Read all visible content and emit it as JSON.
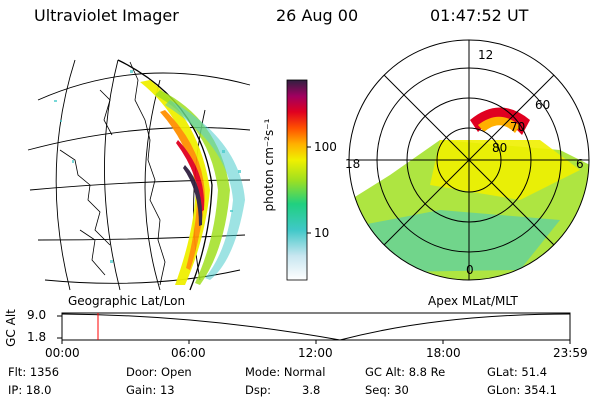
{
  "header": {
    "instrument": "Ultraviolet Imager",
    "date": "26 Aug 00",
    "time": "01:47:52 UT"
  },
  "colorbar": {
    "unit_label": "photon cm⁻²s⁻¹",
    "tick_100": "100",
    "tick_10": "10",
    "colors": [
      "#ffffff",
      "#c8e6f0",
      "#40c8c8",
      "#20d080",
      "#a0e020",
      "#f0f000",
      "#ffb000",
      "#ff5000",
      "#e00020",
      "#a00060",
      "#302040"
    ]
  },
  "polar_plot": {
    "label_top": "12",
    "label_left": "18",
    "label_right": "6",
    "label_bottom": "0",
    "lat_60": "60",
    "lat_70": "70",
    "lat_80": "80"
  },
  "map_labels": {
    "left": "Geographic Lat/Lon",
    "right": "Apex MLat/MLT"
  },
  "altitude_plot": {
    "axis_label": "GC Alt",
    "y_max": "9.0",
    "y_min": "1.8",
    "x_ticks": [
      "00:00",
      "06:00",
      "12:00",
      "18:00",
      "23:59"
    ],
    "current_marker_color": "#ff0000"
  },
  "info": {
    "flt": "Flt: 1356",
    "ip": "IP: 18.0",
    "door": "Door: Open",
    "gain": "Gain: 13",
    "mode": "Mode: Normal",
    "dsp_label": "Dsp:",
    "dsp_value": "3.8",
    "gcalt": "GC Alt: 8.8 Re",
    "seq": "Seq: 30",
    "glat": "GLat: 51.4",
    "glon": "GLon: 354.1"
  }
}
